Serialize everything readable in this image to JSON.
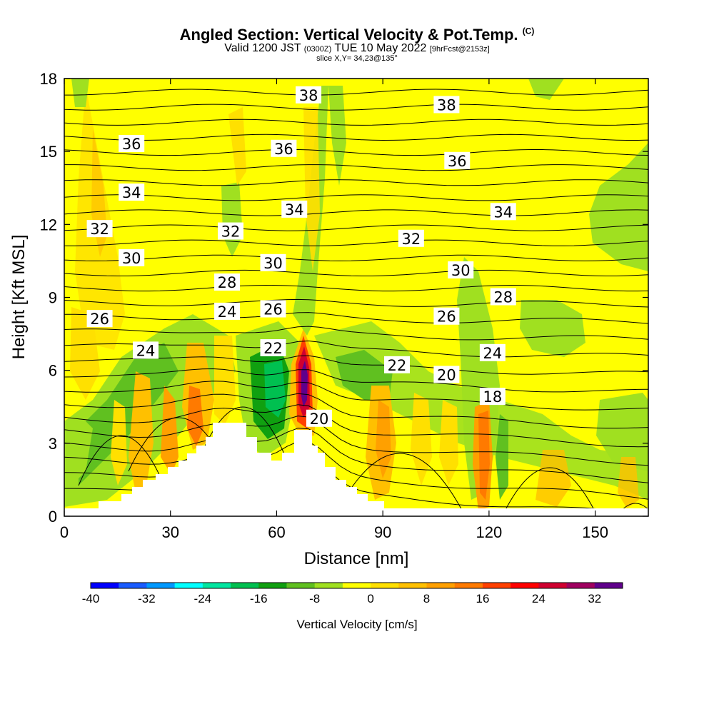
{
  "header": {
    "title": "Angled Section: Vertical Velocity & Pot.Temp.",
    "title_tag": "(C)",
    "subtitle_a": "Valid 1200 JST",
    "subtitle_b": "(0300Z)",
    "subtitle_c": "TUE 10 May 2022",
    "subtitle_d": "[9hrFcst@2153z]",
    "slice": "slice X,Y= 34,23@135°"
  },
  "chart_data": {
    "type": "heatmap",
    "xlabel": "Distance [nm]",
    "ylabel": "Height [Kft MSL]",
    "xlim": [
      0,
      165
    ],
    "ylim": [
      0,
      18
    ],
    "xticks": [
      0,
      30,
      60,
      90,
      120,
      150
    ],
    "yticks": [
      0,
      3,
      6,
      9,
      12,
      15,
      18
    ],
    "colorbar": {
      "title": "Vertical Velocity [cm/s]",
      "min": -40,
      "max": 36,
      "step": 4,
      "tick_labels": [
        -40,
        -32,
        -24,
        -16,
        -8,
        0,
        8,
        16,
        24,
        32
      ],
      "colors": [
        "#0000ff",
        "#1a5cff",
        "#0099ff",
        "#00ffff",
        "#00e6a0",
        "#00c050",
        "#10a010",
        "#60c020",
        "#a0e020",
        "#ffff00",
        "#ffe000",
        "#ffc000",
        "#ffa000",
        "#ff7a00",
        "#ff4000",
        "#ff0000",
        "#d00030",
        "#a00060",
        "#60008c"
      ]
    },
    "contour_labels": [
      {
        "x": 69,
        "y": 17.3,
        "text": "38"
      },
      {
        "x": 108,
        "y": 16.9,
        "text": "38"
      },
      {
        "x": 19,
        "y": 15.3,
        "text": "36"
      },
      {
        "x": 62,
        "y": 15.1,
        "text": "36"
      },
      {
        "x": 111,
        "y": 14.6,
        "text": "36"
      },
      {
        "x": 19,
        "y": 13.3,
        "text": "34"
      },
      {
        "x": 65,
        "y": 12.6,
        "text": "34"
      },
      {
        "x": 124,
        "y": 12.5,
        "text": "34"
      },
      {
        "x": 10,
        "y": 11.8,
        "text": "32"
      },
      {
        "x": 47,
        "y": 11.7,
        "text": "32"
      },
      {
        "x": 98,
        "y": 11.4,
        "text": "32"
      },
      {
        "x": 19,
        "y": 10.6,
        "text": "30"
      },
      {
        "x": 59,
        "y": 10.4,
        "text": "30"
      },
      {
        "x": 112,
        "y": 10.1,
        "text": "30"
      },
      {
        "x": 46,
        "y": 9.6,
        "text": "28"
      },
      {
        "x": 124,
        "y": 9.0,
        "text": "28"
      },
      {
        "x": 10,
        "y": 8.1,
        "text": "26"
      },
      {
        "x": 59,
        "y": 8.5,
        "text": "26"
      },
      {
        "x": 108,
        "y": 8.2,
        "text": "26"
      },
      {
        "x": 46,
        "y": 8.4,
        "text": "24"
      },
      {
        "x": 23,
        "y": 6.8,
        "text": "24"
      },
      {
        "x": 121,
        "y": 6.7,
        "text": "24"
      },
      {
        "x": 59,
        "y": 6.9,
        "text": "22"
      },
      {
        "x": 94,
        "y": 6.2,
        "text": "22"
      },
      {
        "x": 108,
        "y": 5.8,
        "text": "20"
      },
      {
        "x": 72,
        "y": 4.0,
        "text": "20"
      },
      {
        "x": 121,
        "y": 4.9,
        "text": "18"
      }
    ]
  }
}
